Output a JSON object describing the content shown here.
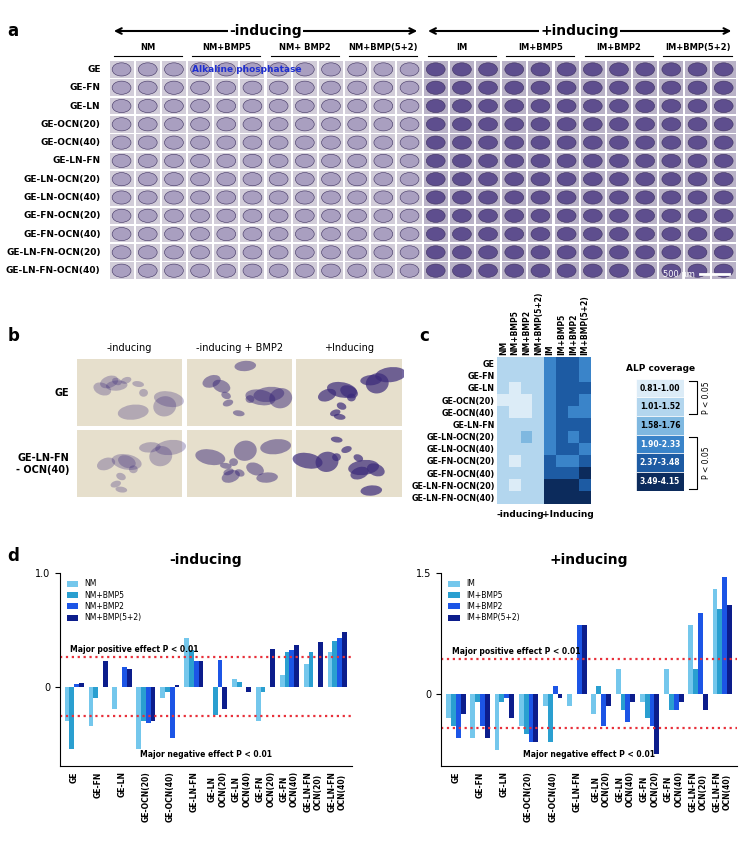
{
  "figure": {
    "panel_a": {
      "label": "a",
      "header_groups": [
        {
          "label": "-inducing",
          "span": 4
        },
        {
          "label": "+inducing",
          "span": 4
        }
      ],
      "columns": [
        "NM",
        "NM+BMP5",
        "NM+ BMP2",
        "NM+BMP(5+2)",
        "IM",
        "IM+BMP5",
        "IM+BMP2",
        "IM+BMP(5+2)"
      ],
      "rows": [
        "GE",
        "GE-FN",
        "GE-LN",
        "GE-OCN(20)",
        "GE-OCN(40)",
        "GE-LN-FN",
        "GE-LN-OCN(20)",
        "GE-LN-OCN(40)",
        "GE-FN-OCN(20)",
        "GE-FN-OCN(40)",
        "GE-LN-FN-OCN(20)",
        "GE-LN-FN-OCN(40)"
      ],
      "images_per_condition": 3,
      "stain_label": "Alkaline phosphatase",
      "scale_bar": "500 µm"
    },
    "panel_b": {
      "label": "b",
      "columns": [
        "-inducing",
        "-inducing + BMP2",
        "+Inducing"
      ],
      "rows": [
        "GE",
        "GE-LN-FN\n- OCN(40)"
      ]
    }
  },
  "chart_data": [
    {
      "type": "heatmap",
      "panel": "c",
      "rows": [
        "GE",
        "GE-FN",
        "GE-LN",
        "GE-OCN(20)",
        "GE-OCN(40)",
        "GE-LN-FN",
        "GE-LN-OCN(20)",
        "GE-LN-OCN(40)",
        "GE-FN-OCN(20)",
        "GE-FN-OCN(40)",
        "GE-LN-FN-OCN(20)",
        "GE-LN-FN-OCN(40)"
      ],
      "columns": [
        "NM",
        "NM+BMP5",
        "NM+BMP2",
        "NM+BMP(5+2)",
        "IM",
        "IM+BMP5",
        "IM+BMP2",
        "IM+BMP(5+2)"
      ],
      "column_groups": [
        {
          "label": "-inducing",
          "from": 0,
          "to": 3
        },
        {
          "label": "+Inducing",
          "from": 4,
          "to": 7
        }
      ],
      "legend_title": "ALP coverage",
      "levels": [
        {
          "label": "0.81-1.00",
          "color": "#dcecf7"
        },
        {
          "label": "1.01-1.52",
          "color": "#b3d6ee"
        },
        {
          "label": "1.58-1.76",
          "color": "#7fb8e0"
        },
        {
          "label": "1.90-2.33",
          "color": "#3a84c9"
        },
        {
          "label": "2.37-3.48",
          "color": "#1d5ba3"
        },
        {
          "label": "3.49-4.15",
          "color": "#0c2b5c"
        }
      ],
      "brackets": [
        {
          "label": "P < 0.05",
          "from": 0,
          "to": 1
        },
        {
          "label": "P < 0.05",
          "from": 3,
          "to": 5
        }
      ],
      "cells": [
        [
          1,
          1,
          1,
          1,
          3,
          4,
          4,
          3
        ],
        [
          1,
          1,
          1,
          1,
          3,
          4,
          4,
          3
        ],
        [
          1,
          0,
          1,
          1,
          3,
          4,
          4,
          4
        ],
        [
          0,
          0,
          0,
          1,
          3,
          4,
          4,
          3
        ],
        [
          1,
          0,
          0,
          1,
          3,
          4,
          3,
          3
        ],
        [
          1,
          1,
          1,
          1,
          3,
          4,
          4,
          4
        ],
        [
          1,
          1,
          2,
          1,
          3,
          4,
          3,
          4
        ],
        [
          1,
          1,
          1,
          1,
          3,
          4,
          4,
          3
        ],
        [
          1,
          0,
          1,
          1,
          4,
          3,
          3,
          4
        ],
        [
          1,
          1,
          1,
          1,
          4,
          4,
          4,
          5
        ],
        [
          1,
          0,
          1,
          1,
          5,
          5,
          5,
          4
        ],
        [
          1,
          1,
          1,
          1,
          5,
          5,
          5,
          5
        ]
      ]
    },
    {
      "type": "bar",
      "panel": "d",
      "title": "-inducing",
      "categories": [
        "GE",
        "GE-FN",
        "GE-LN",
        "GE-OCN(20)",
        "GE-OCN(40)",
        "GE-LN-FN",
        "GE-LN\nOCN(20)",
        "GE-LN\nOCN(40)",
        "GE-FN\nOCN(20)",
        "GE-FN\nOCN(40)",
        "GE-LN-FN\nOCN(20)",
        "GE-LN-FN\nOCN(40)"
      ],
      "series": [
        {
          "name": "NM",
          "color": "#74c7ec",
          "values": [
            -0.3,
            -0.35,
            -0.2,
            -0.55,
            -0.1,
            0.43,
            0.0,
            0.07,
            -0.3,
            0.1,
            0.2,
            0.3
          ]
        },
        {
          "name": "NM+BMP5",
          "color": "#2a9fd0",
          "values": [
            -0.55,
            -0.1,
            0.0,
            -0.3,
            -0.05,
            0.32,
            -0.25,
            0.04,
            -0.05,
            0.3,
            0.3,
            0.4
          ]
        },
        {
          "name": "NM+BMP2",
          "color": "#1c55e6",
          "values": [
            0.02,
            0.0,
            0.17,
            -0.32,
            -0.45,
            0.22,
            0.23,
            0.0,
            0.0,
            0.32,
            0.0,
            0.43
          ]
        },
        {
          "name": "NM+BMP(5+2)",
          "color": "#0c1d8c",
          "values": [
            0.03,
            0.22,
            0.15,
            -0.3,
            0.01,
            0.22,
            -0.2,
            -0.05,
            0.33,
            0.36,
            0.39,
            0.48
          ]
        }
      ],
      "ylim": [
        -0.7,
        1.0
      ],
      "yticks": [
        0,
        {
          "value": 1.0,
          "label": "1.0"
        }
      ],
      "legend": "upper left",
      "annotations": [
        {
          "value": 0.26,
          "label": "Major positive effect P < 0.01"
        },
        {
          "value": -0.26,
          "label": "Major negative effect P < 0.01"
        }
      ]
    },
    {
      "type": "bar",
      "title": "+inducing",
      "categories": [
        "GE",
        "GE-FN",
        "GE-LN",
        "GE-OCN(20)",
        "GE-OCN(40)",
        "GE-LN-FN",
        "GE-LN\nOCN(20)",
        "GE-LN\nOCN(40)",
        "GE-FN\nOCN(20)",
        "GE-FN\nOCN(40)",
        "GE-LN-FN\nOCN(20)",
        "GE-LN-FN\nOCN(40)"
      ],
      "series": [
        {
          "name": "IM",
          "color": "#74c7ec",
          "values": [
            -0.3,
            -0.55,
            -0.7,
            -0.4,
            -0.15,
            -0.15,
            -0.25,
            0.3,
            -0.1,
            0.3,
            0.85,
            1.3
          ]
        },
        {
          "name": "IM+BMP5",
          "color": "#2a9fd0",
          "values": [
            -0.4,
            -0.1,
            -0.1,
            -0.5,
            -0.6,
            0.0,
            0.1,
            -0.2,
            -0.3,
            -0.2,
            0.3,
            1.05
          ]
        },
        {
          "name": "IM+BMP2",
          "color": "#1c55e6",
          "values": [
            -0.55,
            -0.4,
            -0.05,
            -0.6,
            0.1,
            0.85,
            -0.4,
            -0.35,
            -0.4,
            -0.2,
            1.0,
            1.45
          ]
        },
        {
          "name": "IM+BMP(5+2)",
          "color": "#0c1d8c",
          "values": [
            -0.25,
            -0.55,
            -0.3,
            -0.6,
            -0.05,
            0.85,
            -0.15,
            -0.1,
            -0.75,
            -0.1,
            -0.2,
            1.1
          ]
        }
      ],
      "ylim": [
        -0.9,
        1.5
      ],
      "yticks": [
        0,
        {
          "value": 1.5,
          "label": "1.5"
        }
      ],
      "legend": "upper left",
      "annotations": [
        {
          "value": 0.43,
          "label": "Major positive effect P < 0.01"
        },
        {
          "value": -0.43,
          "label": "Major negative effect P < 0.01"
        }
      ]
    }
  ]
}
